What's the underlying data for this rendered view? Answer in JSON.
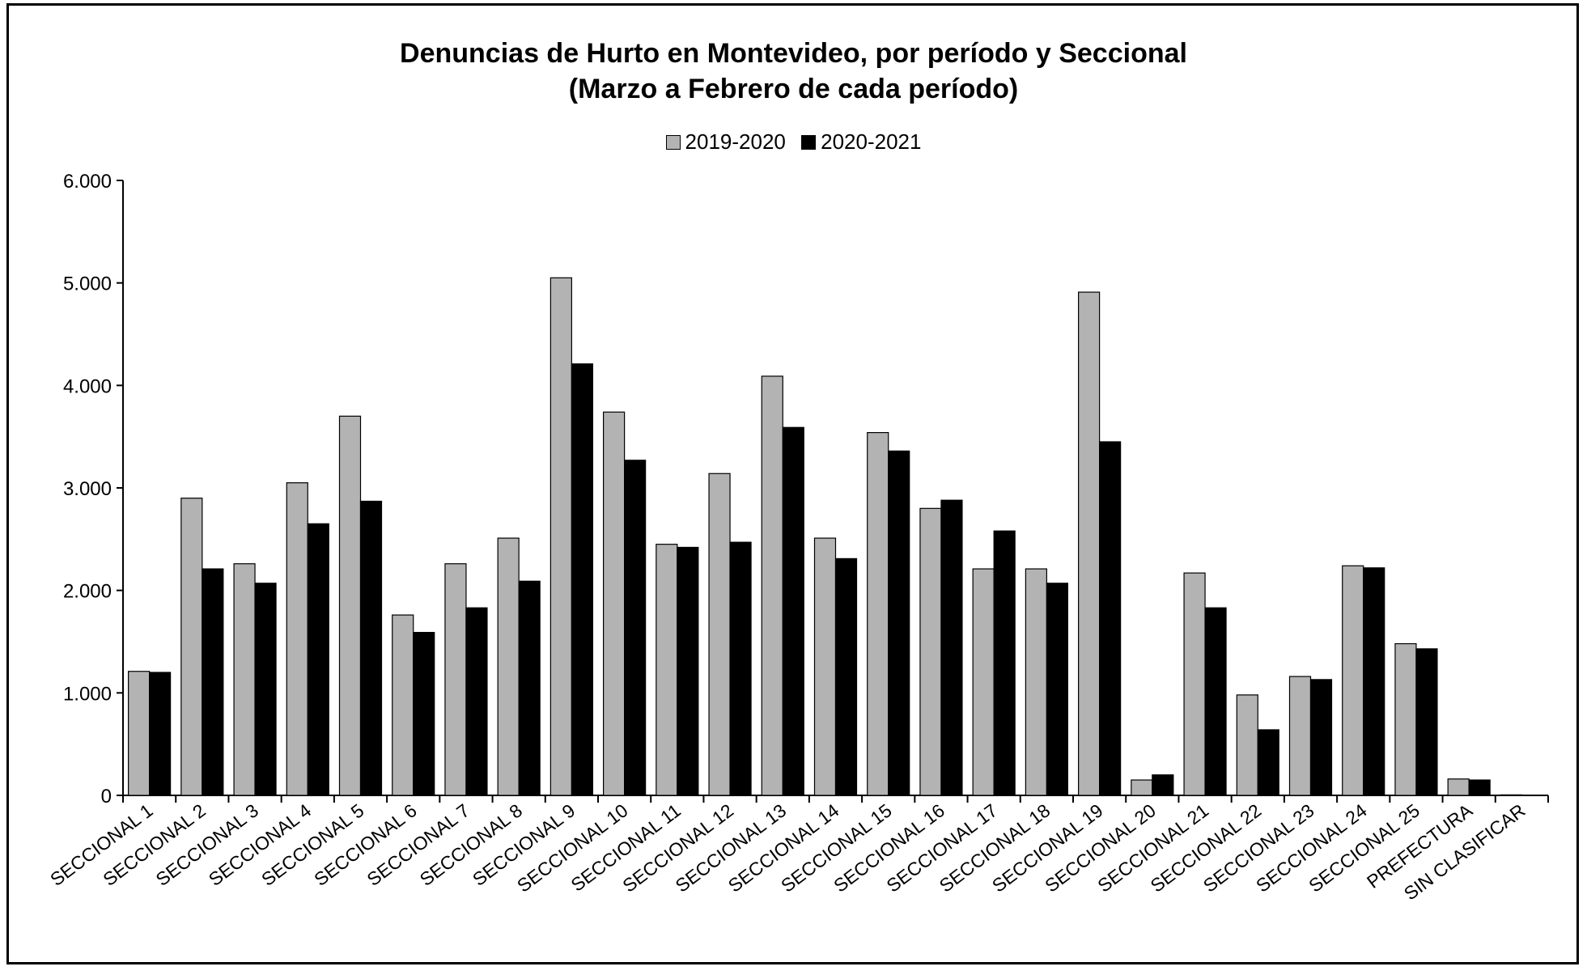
{
  "colors": {
    "series1": "#b3b3b3",
    "series2": "#000000",
    "axis": "#000000"
  },
  "chart_data": {
    "type": "bar",
    "title": "Denuncias de Hurto en Montevideo, por período y Seccional",
    "subtitle": "(Marzo a Febrero de cada período)",
    "xlabel": "",
    "ylabel": "",
    "ylim": [
      0,
      6000
    ],
    "yticks": [
      0,
      1000,
      2000,
      3000,
      4000,
      5000,
      6000
    ],
    "ytick_labels": [
      "0",
      "1.000",
      "2.000",
      "3.000",
      "4.000",
      "5.000",
      "6.000"
    ],
    "grid": false,
    "legend_position": "top-center",
    "categories": [
      "SECCIONAL 1",
      "SECCIONAL 2",
      "SECCIONAL 3",
      "SECCIONAL 4",
      "SECCIONAL 5",
      "SECCIONAL 6",
      "SECCIONAL 7",
      "SECCIONAL 8",
      "SECCIONAL 9",
      "SECCIONAL 10",
      "SECCIONAL 11",
      "SECCIONAL 12",
      "SECCIONAL 13",
      "SECCIONAL 14",
      "SECCIONAL 15",
      "SECCIONAL 16",
      "SECCIONAL 17",
      "SECCIONAL 18",
      "SECCIONAL 19",
      "SECCIONAL 20",
      "SECCIONAL 21",
      "SECCIONAL 22",
      "SECCIONAL 23",
      "SECCIONAL 24",
      "SECCIONAL 25",
      "PREFECTURA",
      "SIN CLASIFICAR"
    ],
    "series": [
      {
        "name": "2019-2020",
        "values": [
          1210,
          2900,
          2260,
          3050,
          3700,
          1760,
          2260,
          2510,
          5050,
          3740,
          2450,
          3140,
          4090,
          2510,
          3540,
          2800,
          2210,
          2210,
          4910,
          150,
          2170,
          980,
          1160,
          2240,
          1480,
          160,
          5
        ]
      },
      {
        "name": "2020-2021",
        "values": [
          1200,
          2210,
          2070,
          2650,
          2870,
          1590,
          1830,
          2090,
          4210,
          3270,
          2420,
          2470,
          3590,
          2310,
          3360,
          2880,
          2580,
          2070,
          3450,
          200,
          1830,
          640,
          1130,
          2220,
          1430,
          150,
          2
        ]
      }
    ]
  }
}
